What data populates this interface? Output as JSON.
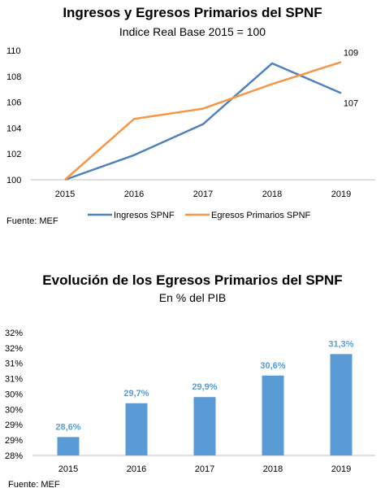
{
  "chart_data": [
    {
      "type": "line",
      "title": "Ingresos y Egresos Primarios del SPNF",
      "subtitle": "Indice Real Base 2015 = 100",
      "x": [
        "2015",
        "2016",
        "2017",
        "2018",
        "2019"
      ],
      "ylim": [
        100,
        110
      ],
      "yticks": [
        "100",
        "102",
        "104",
        "106",
        "108",
        "110"
      ],
      "grid": false,
      "legend": "bottom",
      "series": [
        {
          "name": "Ingresos SPNF",
          "color": "#4F81BD",
          "values": [
            100,
            101.9,
            104.3,
            109.0,
            106.7
          ],
          "end_label": "107"
        },
        {
          "name": "Egresos Primarios SPNF",
          "color": "#F79646",
          "values": [
            100,
            104.7,
            105.5,
            107.4,
            109.1
          ],
          "end_label": "109"
        }
      ],
      "source": "Fuente:  MEF"
    },
    {
      "type": "bar",
      "title": "Evolución de los Egresos Primarios del SPNF",
      "subtitle": "En % del PIB",
      "categories": [
        "2015",
        "2016",
        "2017",
        "2018",
        "2019"
      ],
      "values": [
        28.6,
        29.7,
        29.9,
        30.6,
        31.3
      ],
      "data_labels": [
        "28,6%",
        "29,7%",
        "29,9%",
        "30,6%",
        "31,3%"
      ],
      "ylim": [
        28,
        32.5
      ],
      "yticks": [
        "28%",
        "29%",
        "29%",
        "30%",
        "30%",
        "31%",
        "31%",
        "32%",
        "32%"
      ],
      "color": "#5B9BD5",
      "grid": false,
      "source": "Fuente:  MEF"
    }
  ]
}
